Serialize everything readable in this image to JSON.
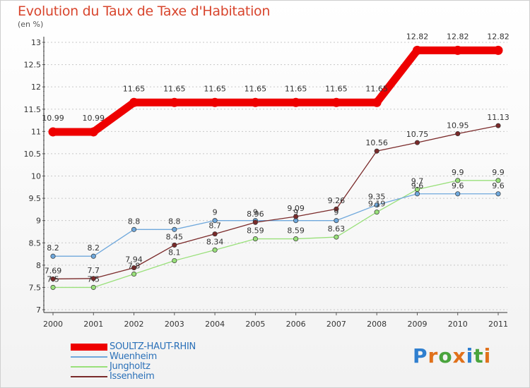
{
  "chart_data": {
    "type": "line",
    "title": "Evolution du Taux de Taxe d'Habitation",
    "subtitle": "(en %)",
    "x": [
      "2000",
      "2001",
      "2002",
      "2003",
      "2004",
      "2005",
      "2006",
      "2007",
      "2008",
      "2009",
      "2010",
      "2011"
    ],
    "ylim": [
      7,
      13
    ],
    "yticks": [
      "7",
      "7.5",
      "8",
      "8.5",
      "9",
      "9.5",
      "10",
      "10.5",
      "11",
      "11.5",
      "12",
      "12.5",
      "13"
    ],
    "grid": "horizontal dotted",
    "legend_position": "bottom-left",
    "series": [
      {
        "name": "SOULTZ-HAUT-RHIN",
        "color": "#ee0000",
        "values": [
          10.99,
          10.99,
          11.65,
          11.65,
          11.65,
          11.65,
          11.65,
          11.65,
          11.65,
          12.82,
          12.82,
          12.82
        ],
        "labels": [
          "10.99",
          "10.99",
          "11.65",
          "11.65",
          "11.65",
          "11.65",
          "11.65",
          "11.65",
          "11.65",
          "12.82",
          "12.82",
          "12.82"
        ]
      },
      {
        "name": "Wuenheim",
        "color": "#6fa8dc",
        "values": [
          8.2,
          8.2,
          8.8,
          8.8,
          9,
          9,
          9,
          9,
          9.35,
          9.6,
          9.6,
          9.6
        ],
        "labels": [
          "8.2",
          "8.2",
          "8.8",
          "8.8",
          "9",
          "9",
          "9",
          "9",
          "9.35",
          "9.6",
          "9.6",
          "9.6"
        ]
      },
      {
        "name": "Jungholtz",
        "color": "#99e07a",
        "values": [
          7.5,
          7.5,
          7.8,
          8.1,
          8.34,
          8.59,
          8.59,
          8.63,
          9.19,
          9.7,
          9.9,
          9.9
        ],
        "labels": [
          "7.5",
          "7.5",
          "7.8",
          "8.1",
          "8.34",
          "8.59",
          "8.59",
          "8.63",
          "9.19",
          "9.7",
          "9.9",
          "9.9"
        ]
      },
      {
        "name": "Issenheim",
        "color": "#7a2a2a",
        "values": [
          7.69,
          7.7,
          7.94,
          8.45,
          8.7,
          8.96,
          9.09,
          9.26,
          10.56,
          10.75,
          10.95,
          11.13
        ],
        "labels": [
          "7.69",
          "7.7",
          "7.94",
          "8.45",
          "8.7",
          "8.96",
          "9.09",
          "9.26",
          "10.56",
          "10.75",
          "10.95",
          "11.13"
        ]
      }
    ]
  },
  "brand": {
    "text": "Proxiti",
    "letters": [
      {
        "ch": "P",
        "color": "#2f7fcf"
      },
      {
        "ch": "r",
        "color": "#e0711b"
      },
      {
        "ch": "o",
        "color": "#4aa43d"
      },
      {
        "ch": "x",
        "color": "#e0711b"
      },
      {
        "ch": "i",
        "color": "#2f7fcf"
      },
      {
        "ch": "t",
        "color": "#4aa43d"
      },
      {
        "ch": "i",
        "color": "#e0711b"
      }
    ]
  }
}
